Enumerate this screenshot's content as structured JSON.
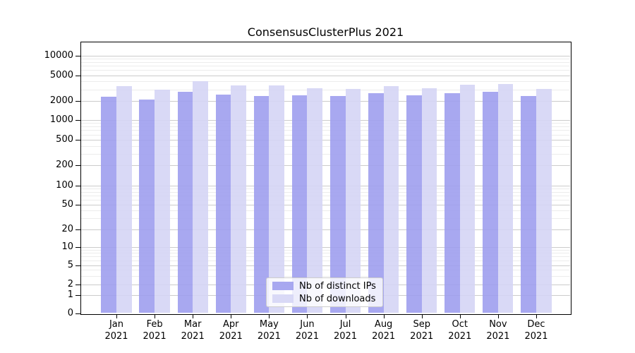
{
  "chart_data": {
    "type": "bar",
    "title": "ConsensusClusterPlus 2021",
    "categories": [
      {
        "month": "Jan",
        "year": "2021"
      },
      {
        "month": "Feb",
        "year": "2021"
      },
      {
        "month": "Mar",
        "year": "2021"
      },
      {
        "month": "Apr",
        "year": "2021"
      },
      {
        "month": "May",
        "year": "2021"
      },
      {
        "month": "Jun",
        "year": "2021"
      },
      {
        "month": "Jul",
        "year": "2021"
      },
      {
        "month": "Aug",
        "year": "2021"
      },
      {
        "month": "Sep",
        "year": "2021"
      },
      {
        "month": "Oct",
        "year": "2021"
      },
      {
        "month": "Nov",
        "year": "2021"
      },
      {
        "month": "Dec",
        "year": "2021"
      }
    ],
    "series": [
      {
        "name": "Nb of distinct IPs",
        "color": "#9e9eee",
        "values": [
          2290,
          2070,
          2730,
          2500,
          2380,
          2440,
          2330,
          2600,
          2440,
          2630,
          2740,
          2360
        ]
      },
      {
        "name": "Nb of downloads",
        "color": "#d5d5f5",
        "values": [
          3410,
          2930,
          4030,
          3490,
          3480,
          3140,
          3050,
          3360,
          3140,
          3530,
          3650,
          3030
        ]
      }
    ],
    "yscale": "symlog",
    "ylim": [
      0,
      16000
    ],
    "yticks": [
      10000,
      5000,
      2000,
      1000,
      500,
      200,
      100,
      50,
      20,
      10,
      5,
      2,
      1,
      0
    ],
    "ytick_labels": [
      "10000",
      "5000",
      "2000",
      "1000",
      "500",
      "200",
      "100",
      "50",
      "20",
      "10",
      "5",
      "2",
      "1",
      "0"
    ],
    "xlabel": "",
    "ylabel": "",
    "grid": true,
    "legend_position": "lower center inside"
  },
  "legend": {
    "items": [
      {
        "label": "Nb of distinct IPs",
        "color": "#9e9eee"
      },
      {
        "label": "Nb of downloads",
        "color": "#d5d5f5"
      }
    ]
  },
  "colors": {
    "bar_distinct_ips": "#9e9eee",
    "bar_downloads": "#d5d5f5",
    "bar_opacity": "0.9",
    "grid_major": "#cbcbcb",
    "grid_minor": "#ececec",
    "axis": "#000000",
    "background": "#ffffff",
    "text": "#000000"
  }
}
